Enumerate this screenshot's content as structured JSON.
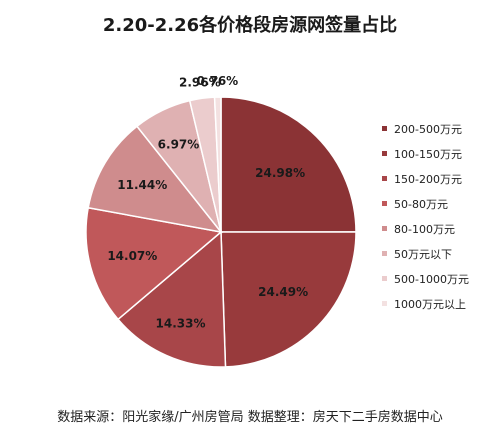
{
  "chart_data": {
    "type": "pie",
    "title": "2.20-2.26各价格段房源网签量占比",
    "categories": [
      "200-500万元",
      "100-150万元",
      "150-200万元",
      "50-80万元",
      "80-100万元",
      "50万元以下",
      "500-1000万元",
      "1000万元以上"
    ],
    "values": [
      24.98,
      24.49,
      14.33,
      14.07,
      11.44,
      6.97,
      2.96,
      0.76
    ],
    "value_labels": [
      "24.98%",
      "24.49%",
      "14.33%",
      "14.07%",
      "11.44%",
      "6.97%",
      "2.96%",
      "0.76%"
    ],
    "colors": [
      "#8b3335",
      "#983a3c",
      "#a84649",
      "#c0585a",
      "#cf8c8d",
      "#dfb1b2",
      "#ebcccd",
      "#f3e1e1"
    ],
    "legend_placement": "right",
    "grid": false
  },
  "source_note": "数据来源：阳光家缘/广州房管局 数据整理：房天下二手房数据中心"
}
